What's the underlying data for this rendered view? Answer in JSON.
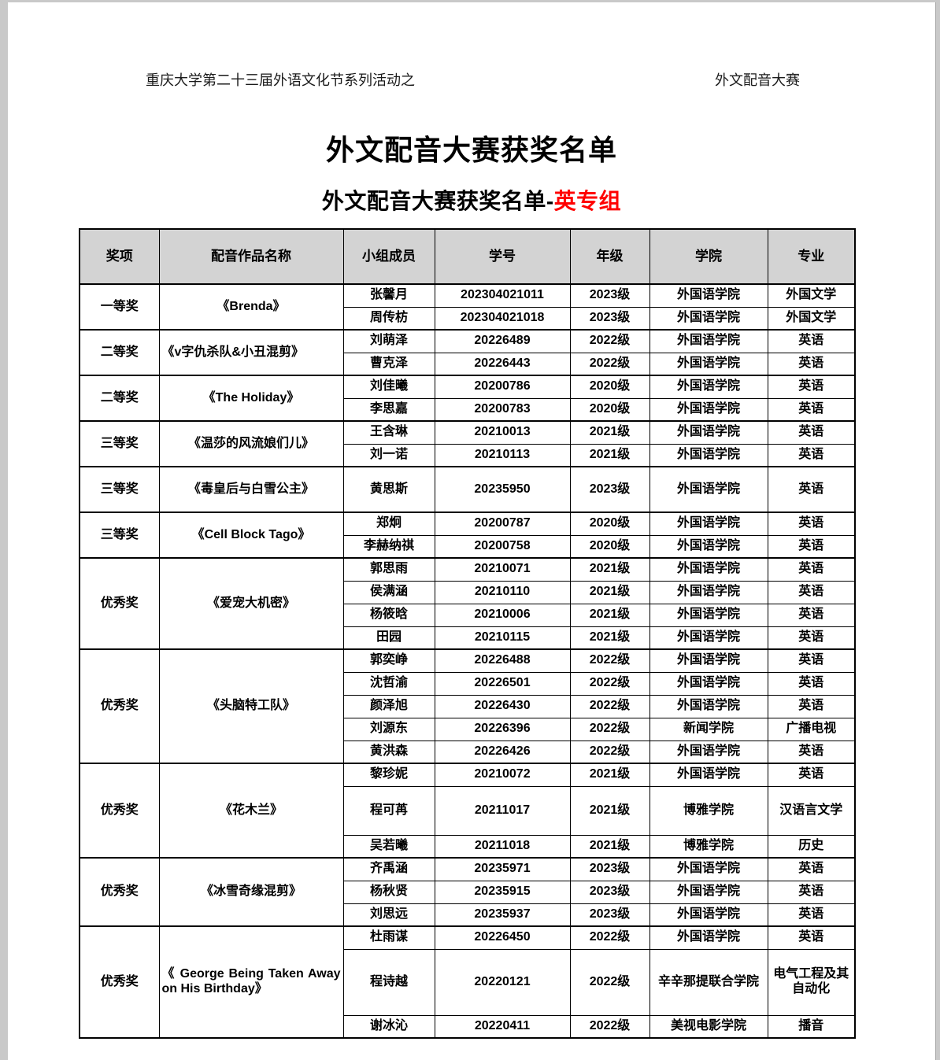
{
  "page_header": {
    "left": "重庆大学第二十三届外语文化节系列活动之",
    "right": "外文配音大赛"
  },
  "title": "外文配音大赛获奖名单",
  "subtitle": {
    "prefix": "外文配音大赛获奖名单-",
    "highlight": "英专组",
    "highlight_color": "#ff0000"
  },
  "table": {
    "header_bg": "#d3d3d3",
    "columns": [
      "奖项",
      "配音作品名称",
      "小组成员",
      "学号",
      "年级",
      "学院",
      "专业"
    ],
    "groups": [
      {
        "award": "一等奖",
        "work": "《Brenda》",
        "members": [
          {
            "name": "张馨月",
            "student_id": "202304021011",
            "grade": "2023级",
            "college": "外国语学院",
            "major": "外国文学"
          },
          {
            "name": "周传枋",
            "student_id": "202304021018",
            "grade": "2023级",
            "college": "外国语学院",
            "major": "外国文学"
          }
        ]
      },
      {
        "award": "二等奖",
        "work": "《v字仇杀队&小丑混剪》",
        "members": [
          {
            "name": "刘萌泽",
            "student_id": "20226489",
            "grade": "2022级",
            "college": "外国语学院",
            "major": "英语"
          },
          {
            "name": "曹克泽",
            "student_id": "20226443",
            "grade": "2022级",
            "college": "外国语学院",
            "major": "英语"
          }
        ]
      },
      {
        "award": "二等奖",
        "work": "《The Holiday》",
        "members": [
          {
            "name": "刘佳曦",
            "student_id": "20200786",
            "grade": "2020级",
            "college": "外国语学院",
            "major": "英语"
          },
          {
            "name": "李思嘉",
            "student_id": "20200783",
            "grade": "2020级",
            "college": "外国语学院",
            "major": "英语"
          }
        ]
      },
      {
        "award": "三等奖",
        "work": "《温莎的风流娘们儿》",
        "members": [
          {
            "name": "王含琳",
            "student_id": "20210013",
            "grade": "2021级",
            "college": "外国语学院",
            "major": "英语"
          },
          {
            "name": "刘一诺",
            "student_id": "20210113",
            "grade": "2021级",
            "college": "外国语学院",
            "major": "英语"
          }
        ]
      },
      {
        "award": "三等奖",
        "work": "《毒皇后与白雪公主》",
        "members": [
          {
            "name": "黄思斯",
            "student_id": "20235950",
            "grade": "2023级",
            "college": "外国语学院",
            "major": "英语"
          }
        ]
      },
      {
        "award": "三等奖",
        "work": "《Cell Block Tago》",
        "members": [
          {
            "name": "郑炯",
            "student_id": "20200787",
            "grade": "2020级",
            "college": "外国语学院",
            "major": "英语"
          },
          {
            "name": "李赫纳祺",
            "student_id": "20200758",
            "grade": "2020级",
            "college": "外国语学院",
            "major": "英语"
          }
        ]
      },
      {
        "award": "优秀奖",
        "work": "《爱宠大机密》",
        "members": [
          {
            "name": "郭思雨",
            "student_id": "20210071",
            "grade": "2021级",
            "college": "外国语学院",
            "major": "英语"
          },
          {
            "name": "侯满涵",
            "student_id": "20210110",
            "grade": "2021级",
            "college": "外国语学院",
            "major": "英语"
          },
          {
            "name": "杨筱晗",
            "student_id": "20210006",
            "grade": "2021级",
            "college": "外国语学院",
            "major": "英语"
          },
          {
            "name": "田园",
            "student_id": "20210115",
            "grade": "2021级",
            "college": "外国语学院",
            "major": "英语"
          }
        ]
      },
      {
        "award": "优秀奖",
        "work": "《头脑特工队》",
        "members": [
          {
            "name": "郭奕峥",
            "student_id": "20226488",
            "grade": "2022级",
            "college": "外国语学院",
            "major": "英语"
          },
          {
            "name": "沈哲渝",
            "student_id": "20226501",
            "grade": "2022级",
            "college": "外国语学院",
            "major": "英语"
          },
          {
            "name": "颜泽旭",
            "student_id": "20226430",
            "grade": "2022级",
            "college": "外国语学院",
            "major": "英语"
          },
          {
            "name": "刘源东",
            "student_id": "20226396",
            "grade": "2022级",
            "college": "新闻学院",
            "major": "广播电视"
          },
          {
            "name": "黄洪森",
            "student_id": "20226426",
            "grade": "2022级",
            "college": "外国语学院",
            "major": "英语"
          }
        ]
      },
      {
        "award": "优秀奖",
        "work": "《花木兰》",
        "members": [
          {
            "name": "黎珍妮",
            "student_id": "20210072",
            "grade": "2021级",
            "college": "外国语学院",
            "major": "英语"
          },
          {
            "name": "程可苒",
            "student_id": "20211017",
            "grade": "2021级",
            "college": "博雅学院",
            "major": "汉语言文学"
          },
          {
            "name": "吴若曦",
            "student_id": "20211018",
            "grade": "2021级",
            "college": "博雅学院",
            "major": "历史"
          }
        ]
      },
      {
        "award": "优秀奖",
        "work": "《冰雪奇缘混剪》",
        "members": [
          {
            "name": "齐禹涵",
            "student_id": "20235971",
            "grade": "2023级",
            "college": "外国语学院",
            "major": "英语"
          },
          {
            "name": "杨秋贤",
            "student_id": "20235915",
            "grade": "2023级",
            "college": "外国语学院",
            "major": "英语"
          },
          {
            "name": "刘思远",
            "student_id": "20235937",
            "grade": "2023级",
            "college": "外国语学院",
            "major": "英语"
          }
        ]
      },
      {
        "award": "优秀奖",
        "work": "《 George Being Taken Away on His Birthday》",
        "members": [
          {
            "name": "杜雨谋",
            "student_id": "20226450",
            "grade": "2022级",
            "college": "外国语学院",
            "major": "英语"
          },
          {
            "name": "程诗越",
            "student_id": "20220121",
            "grade": "2022级",
            "college": "辛辛那提联合学院",
            "major": "电气工程及其自动化"
          },
          {
            "name": "谢冰沁",
            "student_id": "20220411",
            "grade": "2022级",
            "college": "美视电影学院",
            "major": "播音"
          }
        ]
      }
    ]
  }
}
